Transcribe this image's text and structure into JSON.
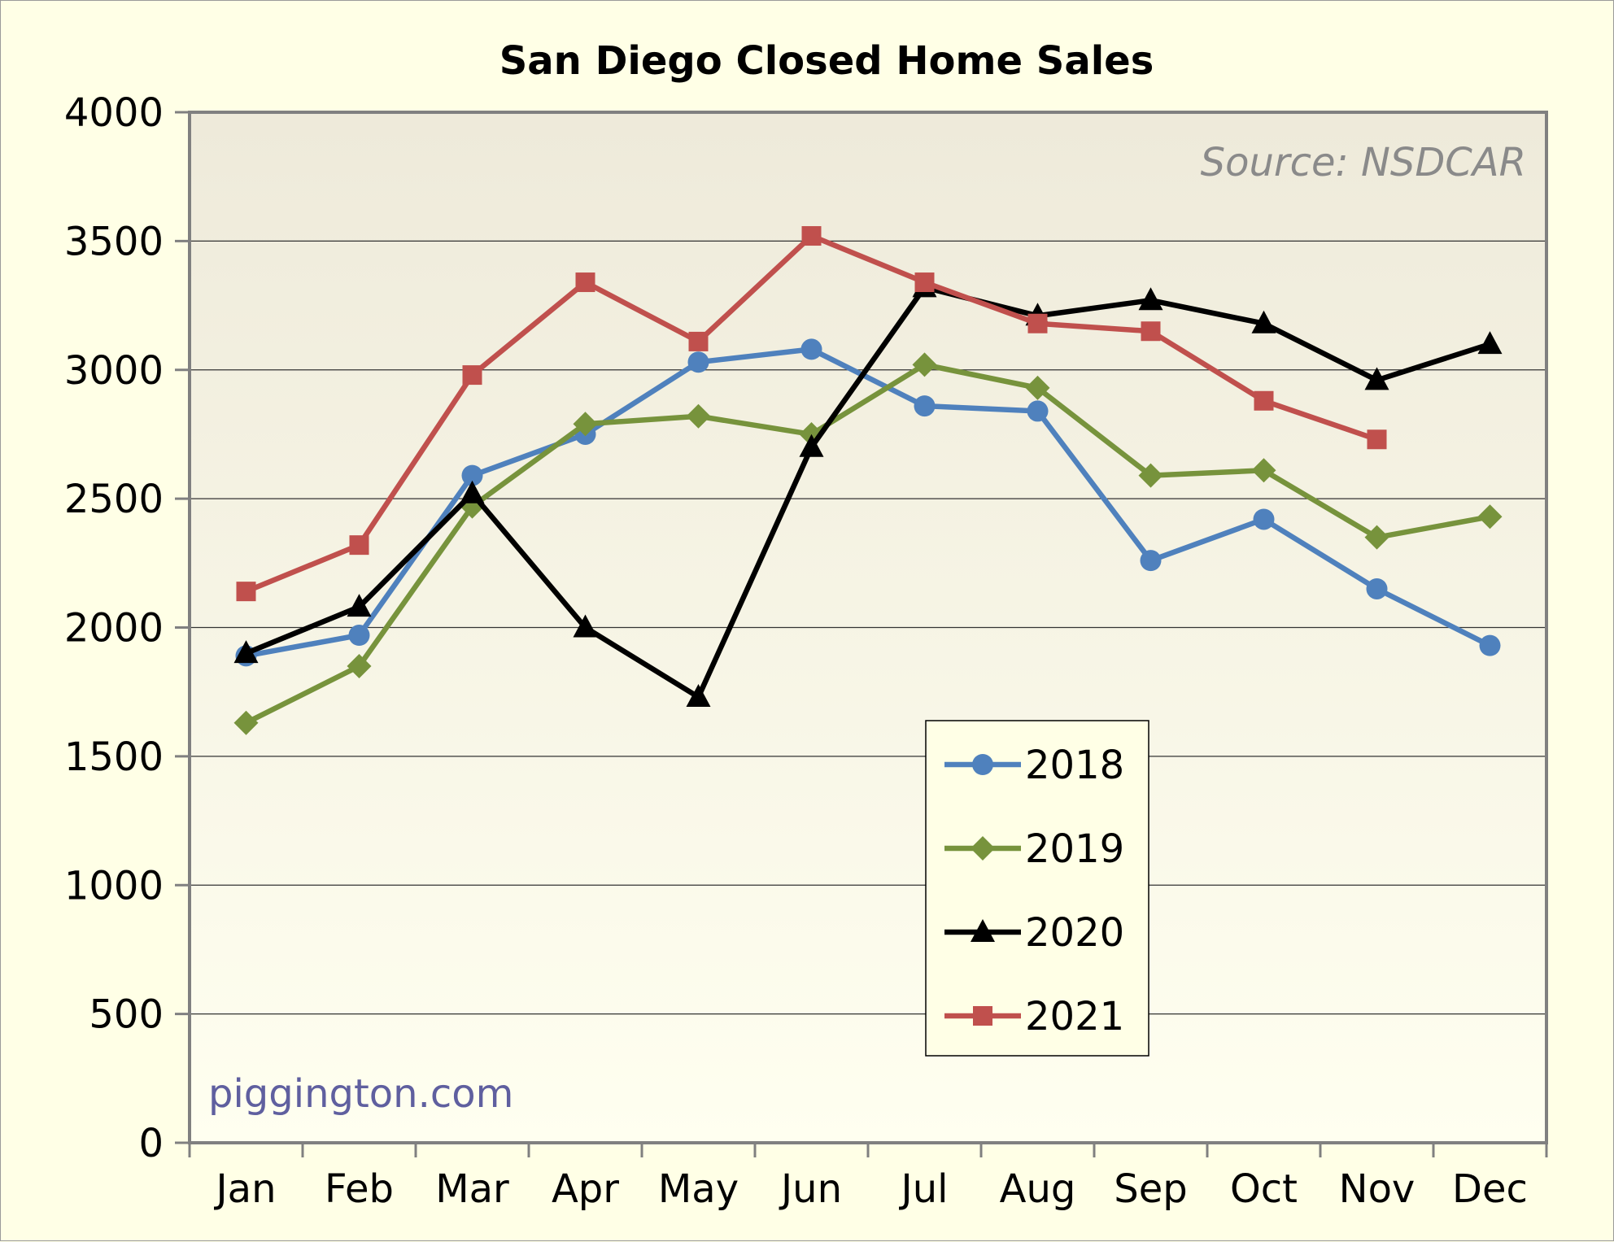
{
  "chart_data": {
    "type": "line",
    "title": "San Diego Closed Home Sales",
    "xlabel": "",
    "ylabel": "",
    "categories": [
      "Jan",
      "Feb",
      "Mar",
      "Apr",
      "May",
      "Jun",
      "Jul",
      "Aug",
      "Sep",
      "Oct",
      "Nov",
      "Dec"
    ],
    "ylim": [
      0,
      4000
    ],
    "yticks": [
      0,
      500,
      1000,
      1500,
      2000,
      2500,
      3000,
      3500,
      4000
    ],
    "grid": true,
    "legend_position": "lower-center",
    "annotations": {
      "source": "Source: NSDCAR",
      "watermark": "piggington.com"
    },
    "series": [
      {
        "name": "2018",
        "color": "#4f81bd",
        "marker": "circle",
        "values": [
          1890,
          1970,
          2590,
          2750,
          3030,
          3080,
          2860,
          2840,
          2260,
          2420,
          2150,
          1930
        ]
      },
      {
        "name": "2019",
        "color": "#77933c",
        "marker": "diamond",
        "values": [
          1630,
          1850,
          2470,
          2790,
          2820,
          2750,
          3020,
          2930,
          2590,
          2610,
          2350,
          2430
        ]
      },
      {
        "name": "2020",
        "color": "#000000",
        "marker": "triangle",
        "values": [
          1900,
          2080,
          2520,
          2000,
          1730,
          2700,
          3320,
          3210,
          3270,
          3180,
          2960,
          3100
        ]
      },
      {
        "name": "2021",
        "color": "#c0504d",
        "marker": "square",
        "values": [
          2140,
          2320,
          2980,
          3340,
          3110,
          3520,
          3340,
          3180,
          3150,
          2880,
          2730,
          null
        ]
      }
    ],
    "colors": {
      "page_background": "#ffffe6",
      "plot_gradient_top": "#eeeada",
      "plot_gradient_bottom": "#fffff0",
      "watermark": "#5f5f9f",
      "source": "#8a8a8a"
    }
  }
}
